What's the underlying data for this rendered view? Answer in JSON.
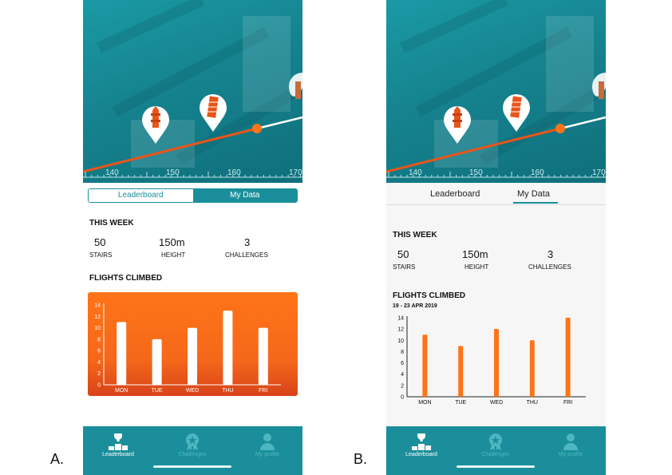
{
  "panels": [
    {
      "label": "A.",
      "hero": {
        "ticks": [
          "140",
          "150",
          "160",
          "170"
        ]
      },
      "tabs": {
        "style": "segmented",
        "items": [
          "Leaderboard",
          "My Data"
        ],
        "active": 1
      },
      "this_week": {
        "title": "THIS WEEK",
        "stats": [
          {
            "value": "50",
            "label": "STAIRS"
          },
          {
            "value": "150m",
            "label": "HEIGHT"
          },
          {
            "value": "3",
            "label": "CHALLENGES"
          }
        ]
      },
      "flights": {
        "title": "FLIGHTS CLIMBED",
        "subtitle": ""
      },
      "nav": [
        {
          "label": "Leaderboard",
          "icon": "trophy-podium-icon",
          "active": true
        },
        {
          "label": "Challenges",
          "icon": "medal-icon",
          "active": false
        },
        {
          "label": "My profile",
          "icon": "person-icon",
          "active": false
        }
      ]
    },
    {
      "label": "B.",
      "hero": {
        "ticks": [
          "140",
          "150",
          "160",
          "170"
        ]
      },
      "tabs": {
        "style": "underline",
        "items": [
          "Leaderboard",
          "My Data"
        ],
        "active": 1
      },
      "this_week": {
        "title": "THIS WEEK",
        "stats": [
          {
            "value": "50",
            "label": "STAIRS"
          },
          {
            "value": "150m",
            "label": "HEIGHT"
          },
          {
            "value": "3",
            "label": "CHALLENGES"
          }
        ]
      },
      "flights": {
        "title": "FLIGHTS CLIMBED",
        "subtitle": "19 - 23 APR 2019"
      },
      "nav": [
        {
          "label": "Leaderboard",
          "icon": "trophy-podium-icon",
          "active": true
        },
        {
          "label": "Challenges",
          "icon": "medal-icon",
          "active": false
        },
        {
          "label": "My profile",
          "icon": "person-icon",
          "active": false
        }
      ]
    }
  ],
  "chart_data": [
    {
      "type": "bar",
      "categories": [
        "MON",
        "TUE",
        "WED",
        "THU",
        "FRI"
      ],
      "values": [
        11,
        8,
        10,
        13,
        10
      ],
      "yticks": [
        "0",
        "2",
        "4",
        "6",
        "8",
        "10",
        "12",
        "14"
      ],
      "ylim": [
        0,
        14
      ],
      "bar_color": "#ffffff",
      "background": "#ff7418"
    },
    {
      "type": "bar",
      "categories": [
        "MON",
        "TUE",
        "WED",
        "THU",
        "FRI"
      ],
      "values": [
        11,
        9,
        12,
        10,
        14
      ],
      "yticks": [
        "0",
        "2",
        "4",
        "6",
        "8",
        "10",
        "12",
        "14"
      ],
      "ylim": [
        0,
        14
      ],
      "bar_color": "#ff7418",
      "background": "#ffffff"
    }
  ],
  "colors": {
    "teal": "#1a8f9b",
    "orange": "#ff7418"
  }
}
